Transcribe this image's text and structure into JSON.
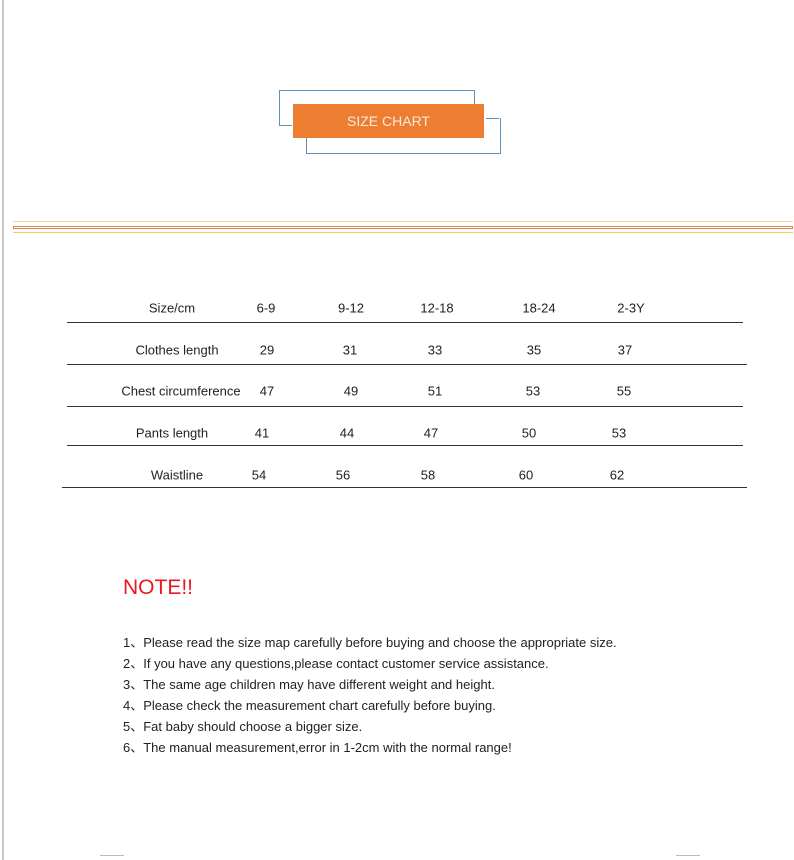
{
  "banner": {
    "title": "SIZE CHART"
  },
  "table": {
    "header": [
      "Size/cm",
      "6-9",
      "9-12",
      "12-18",
      "18-24",
      "2-3Y"
    ],
    "rows": [
      [
        "Clothes length",
        "29",
        "31",
        "33",
        "35",
        "37"
      ],
      [
        "Chest circumference",
        "47",
        "49",
        "51",
        "53",
        "55"
      ],
      [
        "Pants length",
        "41",
        "44",
        "47",
        "50",
        "53"
      ],
      [
        "Waistline",
        "54",
        "56",
        "58",
        "60",
        "62"
      ]
    ]
  },
  "note": {
    "title": "NOTE!!",
    "items": [
      "1、Please read the size map carefully before buying and choose the appropriate size.",
      "2、If you have any questions,please contact customer service assistance.",
      "3、The same age children may have different weight and height.",
      "4、Please check the measurement chart carefully before buying.",
      "5、Fat baby should choose a bigger size.",
      "6、The manual measurement,error in 1-2cm with the normal range!"
    ]
  },
  "colors": {
    "banner": "#ed7d31",
    "frame": "#5b93bd",
    "note_title": "#e8191f"
  }
}
